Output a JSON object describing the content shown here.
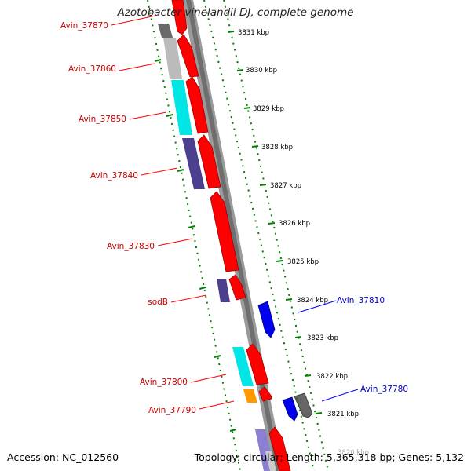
{
  "title": "Azotobacter vinelandii DJ, complete genome",
  "footer": {
    "accession": "Accession: NC_012560",
    "summary": "Topology: circular; Length: 5,365,318 bp; Genes: 5,132"
  },
  "colors": {
    "forward_cds": "#ff0000",
    "reverse_cds": "#0000ff",
    "forward_label": "#cc0000",
    "reverse_label": "#0000cc",
    "tick": "#008000",
    "backbone": "#777777"
  },
  "ticks_kbp": [
    "3831 kbp",
    "3830 kbp",
    "3829 kbp",
    "3828 kbp",
    "3827 kbp",
    "3826 kbp",
    "3825 kbp",
    "3824 kbp",
    "3823 kbp",
    "3822 kbp",
    "3821 kbp",
    "3820 kbp"
  ],
  "left_labels": [
    "Avin_37870",
    "Avin_37860",
    "Avin_37850",
    "Avin_37840",
    "Avin_37830",
    "sodB",
    "Avin_37800",
    "Avin_37790"
  ],
  "right_labels": [
    "Avin_37810",
    "Avin_37780"
  ]
}
